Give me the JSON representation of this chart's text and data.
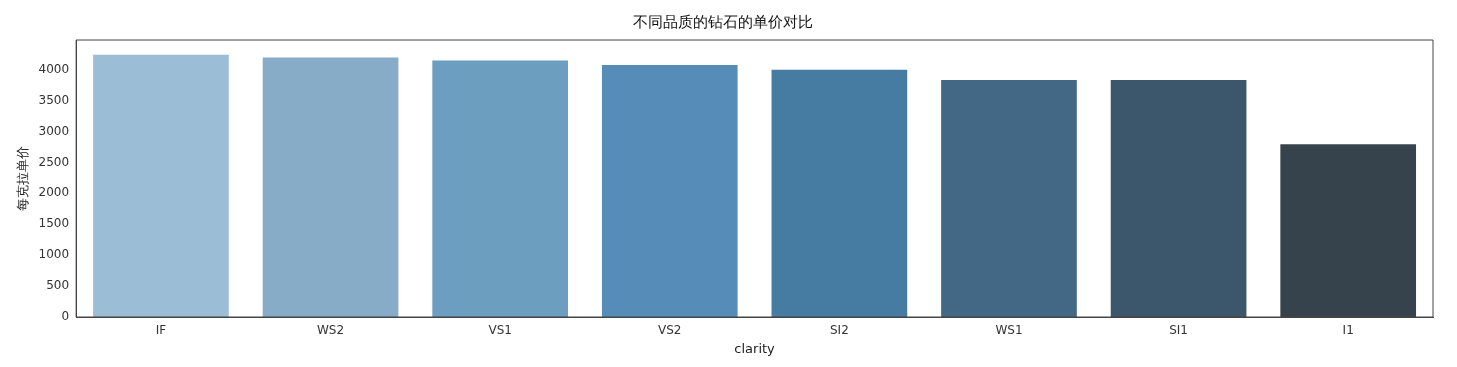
{
  "chart_data": {
    "type": "bar",
    "title": "不同品质的钻石的单价对比",
    "xlabel": "clarity",
    "ylabel": "每克拉单价",
    "categories": [
      "IF",
      "WS2",
      "VS1",
      "VS2",
      "SI2",
      "WS1",
      "SI1",
      "I1"
    ],
    "values": [
      4240,
      4195,
      4150,
      4075,
      4000,
      3835,
      3835,
      2795
    ],
    "colors": [
      "#9bbdd6",
      "#86acc8",
      "#6c9ec0",
      "#558db8",
      "#467ca2",
      "#436886",
      "#3c566b",
      "#36434d"
    ],
    "ylim": [
      0,
      4480
    ],
    "yticks": [
      0,
      500,
      1000,
      1500,
      2000,
      2500,
      3000,
      3500,
      4000
    ],
    "grid": false,
    "legend": false
  }
}
